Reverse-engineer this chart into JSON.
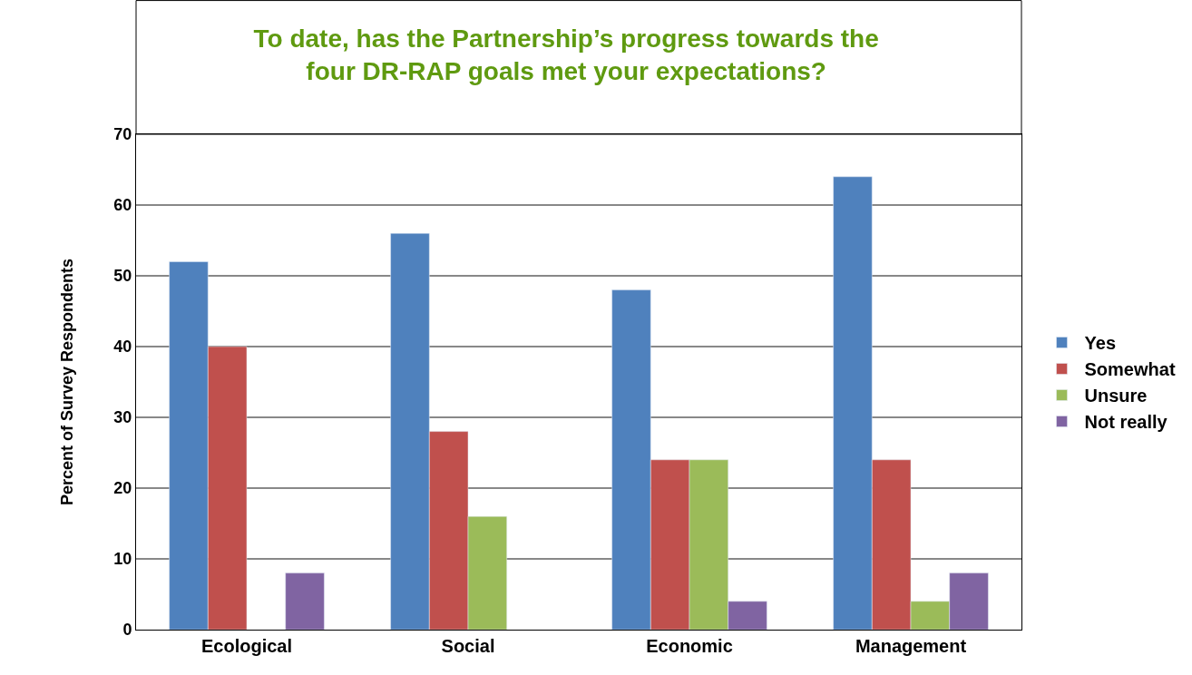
{
  "chart_data": {
    "type": "bar",
    "title": "To date, has the Partnership’s progress towards the four DR-RAP goals met your expectations?",
    "ylabel": "Percent of Survey Respondents",
    "categories": [
      "Ecological",
      "Social",
      "Economic",
      "Management"
    ],
    "series": [
      {
        "name": "Yes",
        "color": "#4f81bd",
        "values": [
          52,
          56,
          48,
          64
        ]
      },
      {
        "name": "Somewhat",
        "color": "#c0504d",
        "values": [
          40,
          28,
          24,
          24
        ]
      },
      {
        "name": "Unsure",
        "color": "#9bbb59",
        "values": [
          null,
          16,
          24,
          4
        ]
      },
      {
        "name": "Not really",
        "color": "#8064a2",
        "values": [
          8,
          null,
          4,
          8
        ]
      }
    ],
    "ylim": [
      0,
      70
    ],
    "yticks": [
      0,
      10,
      20,
      30,
      40,
      50,
      60,
      70
    ],
    "grid": "y",
    "legend": "right"
  }
}
